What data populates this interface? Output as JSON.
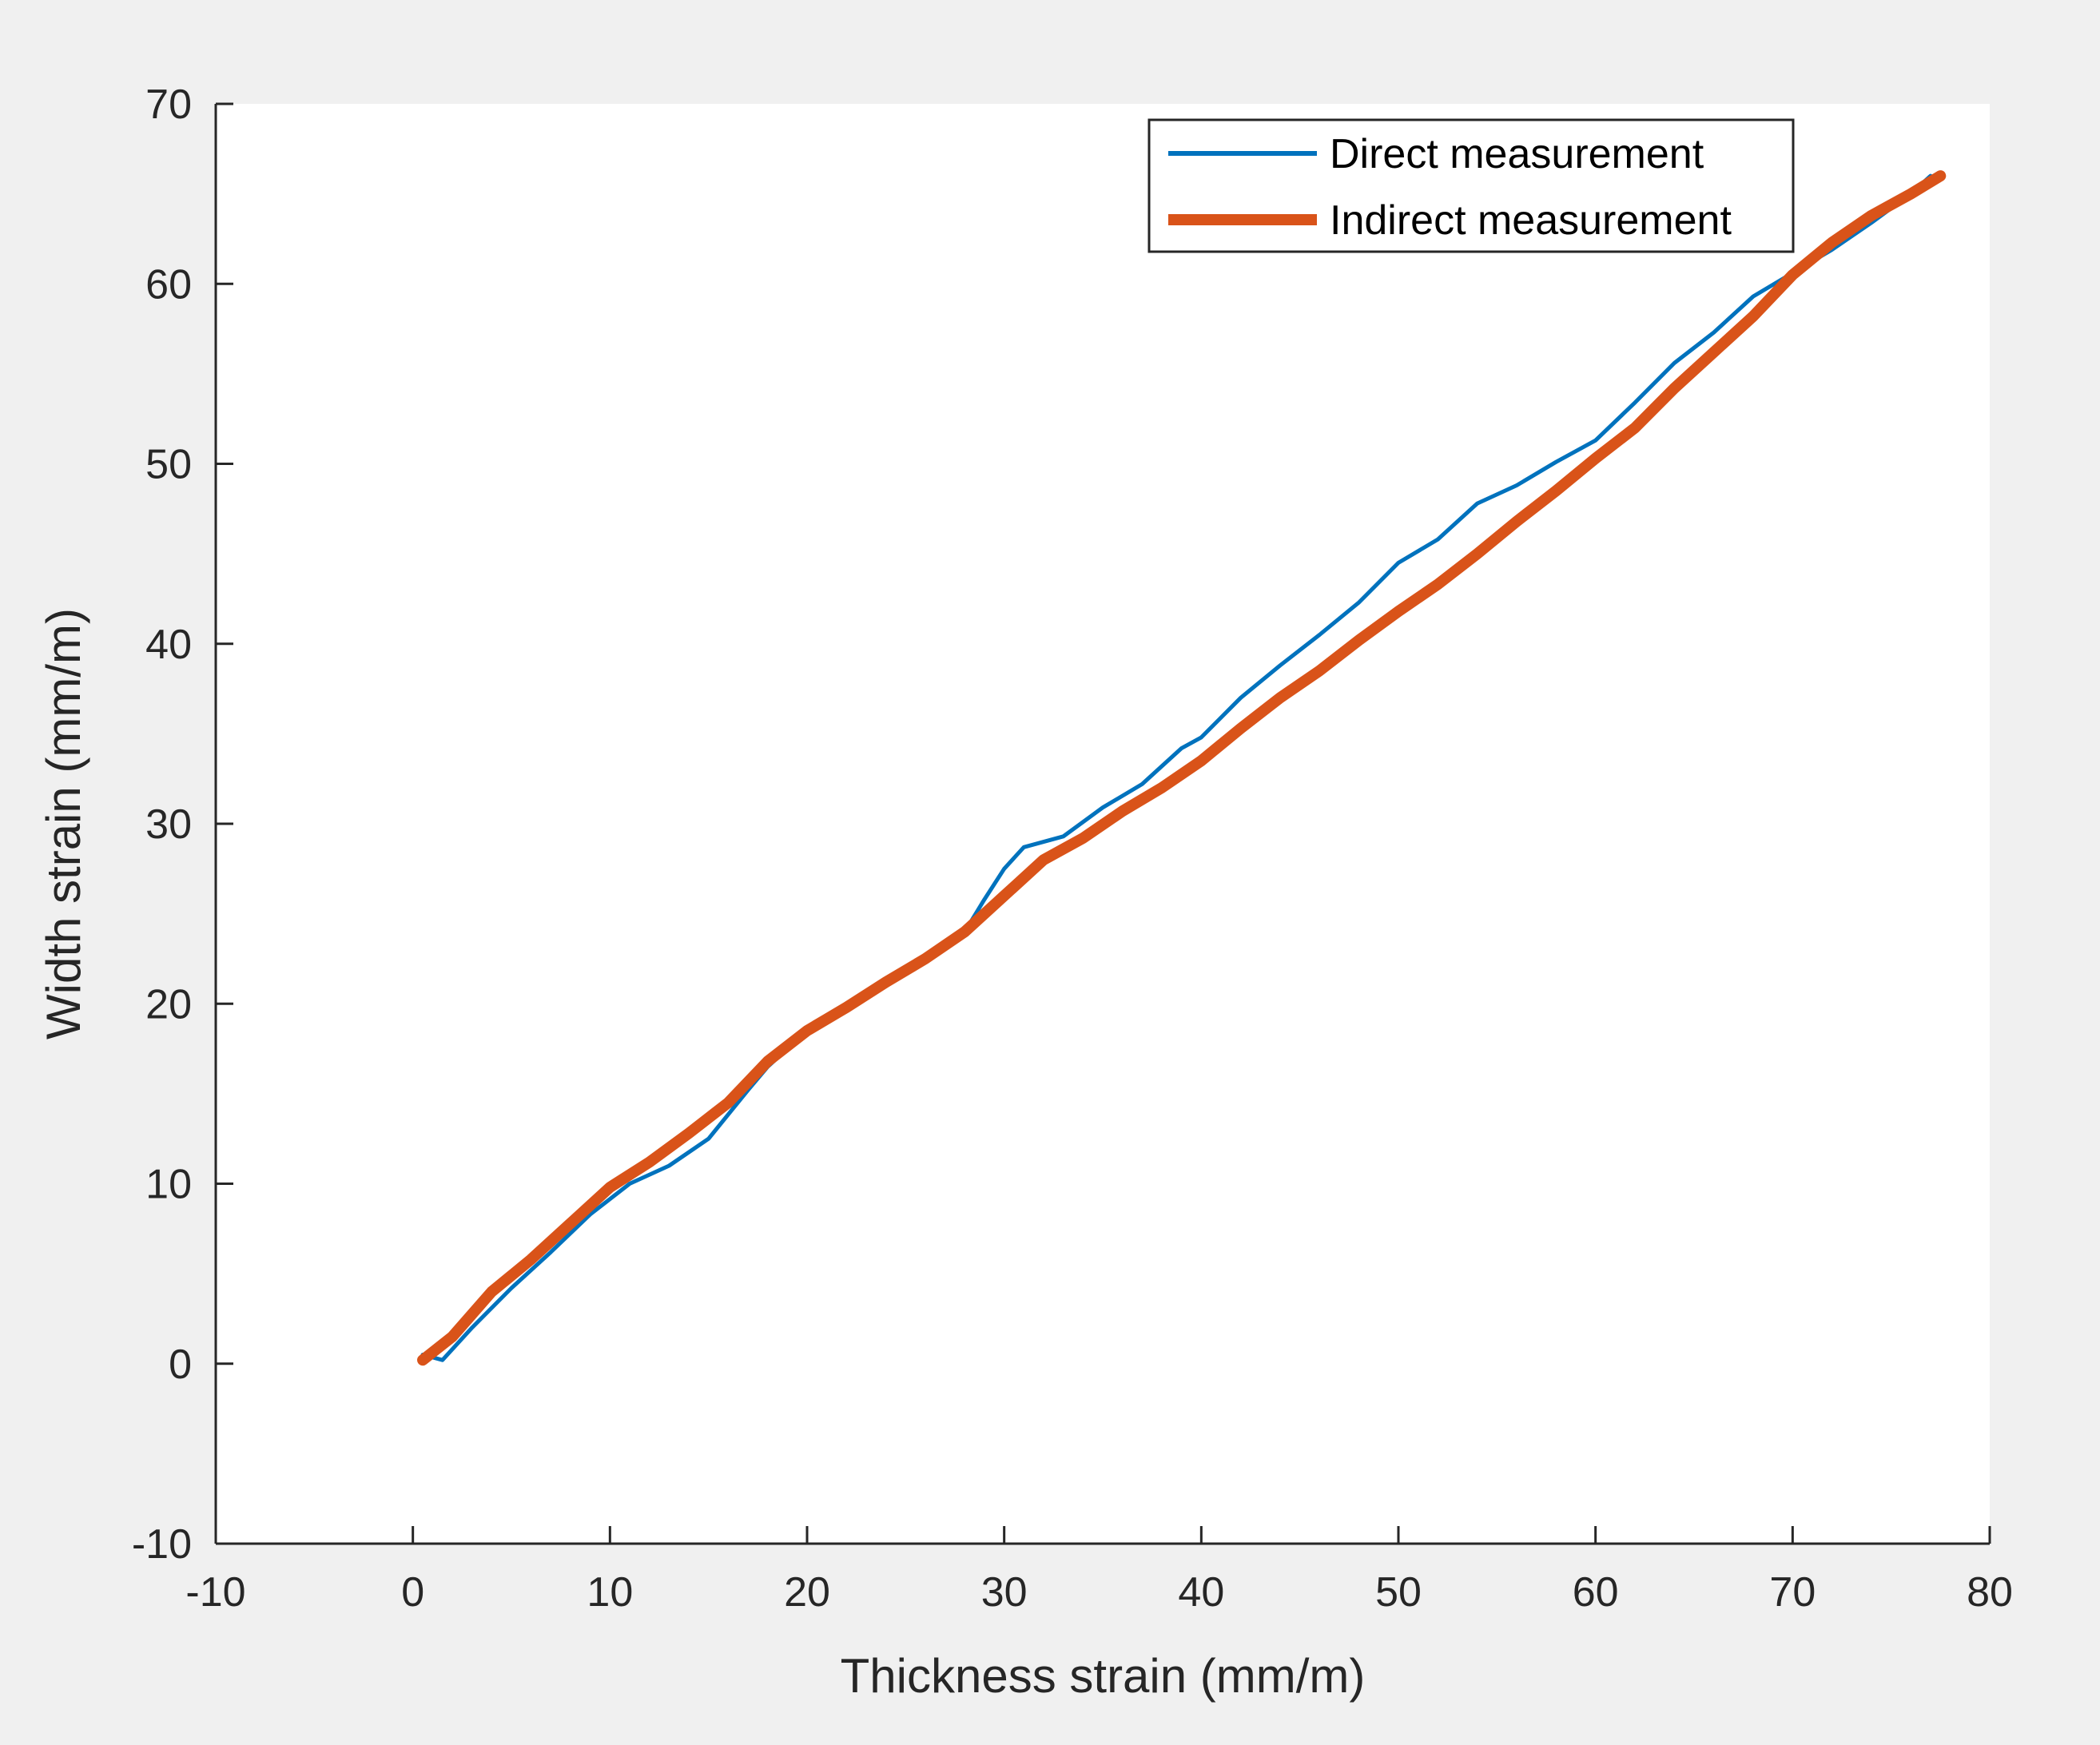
{
  "colors": {
    "figure_bg": "#f0f0f0",
    "axes_bg": "#ffffff",
    "axis_line": "#262626",
    "direct": "#0072bd",
    "indirect": "#d95319"
  },
  "chart_data": {
    "type": "line",
    "title": "",
    "xlabel": "Thickness strain (mm/m)",
    "ylabel": "Width strain (mm/m)",
    "xlim": [
      -10,
      80
    ],
    "ylim": [
      -10,
      70
    ],
    "xticks": [
      -10,
      0,
      10,
      20,
      30,
      40,
      50,
      60,
      70,
      80
    ],
    "yticks": [
      -10,
      0,
      10,
      20,
      30,
      40,
      50,
      60,
      70
    ],
    "xtick_labels": [
      "-10",
      "0",
      "10",
      "20",
      "30",
      "40",
      "50",
      "60",
      "70",
      "80"
    ],
    "ytick_labels": [
      "-10",
      "0",
      "10",
      "20",
      "30",
      "40",
      "50",
      "60",
      "70"
    ],
    "grid": false,
    "legend_position": "top-right",
    "series": [
      {
        "name": "Direct measurement",
        "color": "#0072bd",
        "x": [
          0.5,
          1.5,
          3,
          5,
          7,
          9,
          11,
          13,
          15,
          17,
          18,
          20,
          22,
          24,
          26,
          28,
          29,
          30,
          31,
          33,
          35,
          37,
          39,
          40,
          42,
          44,
          46,
          48,
          50,
          52,
          54,
          56,
          58,
          60,
          62,
          64,
          66,
          68,
          70,
          72,
          74,
          76,
          77
        ],
        "y": [
          0.5,
          0.2,
          2,
          4.2,
          6.2,
          8.3,
          10,
          11,
          12.5,
          15.2,
          16.5,
          18.5,
          19.7,
          21.3,
          22.5,
          24,
          25.8,
          27.5,
          28.7,
          29.3,
          30.9,
          32.2,
          34.2,
          34.8,
          37,
          38.8,
          40.5,
          42.3,
          44.5,
          45.8,
          47.8,
          48.8,
          50.1,
          51.3,
          53.4,
          55.6,
          57.3,
          59.3,
          60.6,
          61.9,
          63.4,
          65,
          66
        ]
      },
      {
        "name": "Indirect measurement",
        "color": "#d95319",
        "x": [
          0.5,
          2,
          4,
          6,
          8,
          10,
          12,
          14,
          16,
          18,
          20,
          22,
          24,
          26,
          28,
          30,
          32,
          34,
          36,
          38,
          40,
          42,
          44,
          46,
          48,
          50,
          52,
          54,
          56,
          58,
          60,
          62,
          64,
          66,
          68,
          70,
          72,
          74,
          76,
          77.5
        ],
        "y": [
          0.2,
          1.5,
          4,
          5.8,
          7.8,
          9.8,
          11.2,
          12.8,
          14.5,
          16.8,
          18.5,
          19.8,
          21.2,
          22.5,
          24,
          26,
          28,
          29.2,
          30.7,
          32,
          33.5,
          35.3,
          37,
          38.5,
          40.2,
          41.8,
          43.3,
          45,
          46.8,
          48.5,
          50.3,
          52,
          54.2,
          56.2,
          58.2,
          60.5,
          62.3,
          63.8,
          65,
          66
        ]
      }
    ]
  }
}
